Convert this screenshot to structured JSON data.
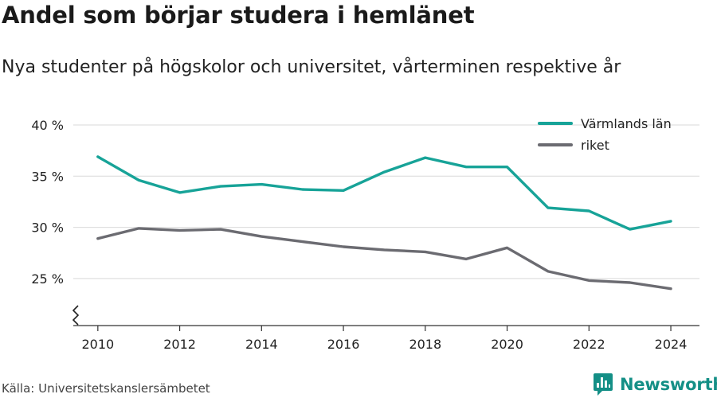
{
  "title": "Andel som börjar studera i hemlänet",
  "subtitle": "Nya studenter på högskolor och universitet, vårterminen respektive år",
  "source": "Källa: Universitetskanslersämbetet",
  "brand": {
    "name": "Newsworthy",
    "icon": "bar-chart-logo-icon",
    "color": "#148f86"
  },
  "chart_data": {
    "type": "line",
    "x": [
      2010,
      2011,
      2012,
      2013,
      2014,
      2015,
      2016,
      2017,
      2018,
      2019,
      2020,
      2021,
      2022,
      2023,
      2024
    ],
    "series": [
      {
        "name": "Värmlands län",
        "color": "#17a398",
        "values": [
          36.9,
          34.6,
          33.4,
          34.0,
          34.2,
          33.7,
          33.6,
          35.4,
          36.8,
          35.9,
          35.9,
          31.9,
          31.6,
          29.8,
          30.6
        ]
      },
      {
        "name": "riket",
        "color": "#6b6b71",
        "values": [
          28.9,
          29.9,
          29.7,
          29.8,
          29.1,
          28.6,
          28.1,
          27.8,
          27.6,
          26.9,
          28.0,
          25.7,
          24.8,
          24.6,
          24.0
        ]
      }
    ],
    "xticks": [
      2010,
      2012,
      2014,
      2016,
      2018,
      2020,
      2022,
      2024
    ],
    "xtick_labels": [
      "2010",
      "2012",
      "2014",
      "2016",
      "2018",
      "2020",
      "2022",
      "2024"
    ],
    "yticks": [
      25,
      30,
      35,
      40
    ],
    "ytick_labels": [
      "25 %",
      "30 %",
      "35 %",
      "40 %"
    ],
    "xlim": [
      2009.4,
      2024.7
    ],
    "ylim": [
      20.4,
      40
    ],
    "xlabel": "",
    "ylabel": "",
    "grid": true,
    "legend_position": "top-right",
    "axis_break": true
  }
}
